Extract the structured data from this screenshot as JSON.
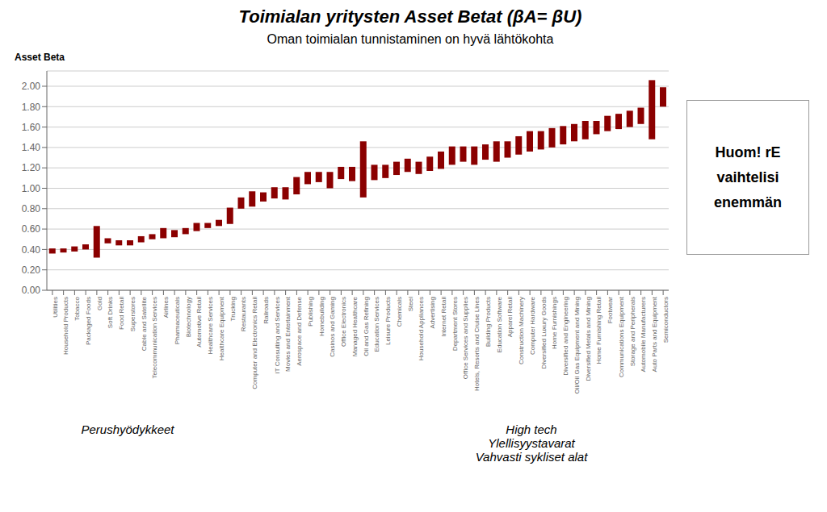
{
  "chart_data": {
    "type": "bar",
    "title": "Toimialan yritysten Asset Betat (βA= βU)",
    "subtitle": "Oman toimialan tunnistaminen on hyvä lähtökohta",
    "y_label": "Asset Beta",
    "categories": [
      "Utilities",
      "Household Products",
      "Tobacco",
      "Packaged Foods",
      "Gold",
      "Soft Drinks",
      "Food Retail",
      "Superstores",
      "Cable and Satellite",
      "Telecommunication Services",
      "Airlines",
      "Pharmaceuticals",
      "Biotechnology",
      "Automotive Retail",
      "Healthcare Services",
      "Healthcare Equipment",
      "Trucking",
      "Restaurants",
      "Computer and Electronics Retail",
      "Railroads",
      "IT Consulting and Services",
      "Movies and Entertainment",
      "Aerospace and Defense",
      "Publishing",
      "Homebuilding",
      "Casinos and Gaming",
      "Office Electronics",
      "Managed Healthcare",
      "Oil and Gas Refining",
      "Education Services",
      "Leisure Products",
      "Chemicals",
      "Steel",
      "Household Appliances",
      "Advertising",
      "Internet Retail",
      "Department Stores",
      "Office Services and Supplies",
      "Hotels, Resorts and Cruise Lines",
      "Building Products",
      "Education Software",
      "Apparel Retail",
      "Construction Machinery",
      "Computer Hardware",
      "Diversified Luxury Goods",
      "Home Furnishings",
      "Diversified and Engineering",
      "Oil/Oil Gas Equipment and Mining",
      "Diversified Metals and Mining",
      "Home Furnishing Retail",
      "Footwear",
      "Communications Equipment",
      "Storage and Peripherals",
      "Automobile Manufacturers",
      "Auto Parts and Equipment",
      "Semiconductors"
    ],
    "values": [
      [
        0.36,
        0.41
      ],
      [
        0.37,
        0.41
      ],
      [
        0.38,
        0.43
      ],
      [
        0.4,
        0.45
      ],
      [
        0.32,
        0.63
      ],
      [
        0.46,
        0.51
      ],
      [
        0.44,
        0.49
      ],
      [
        0.44,
        0.49
      ],
      [
        0.47,
        0.53
      ],
      [
        0.5,
        0.55
      ],
      [
        0.51,
        0.61
      ],
      [
        0.52,
        0.59
      ],
      [
        0.55,
        0.61
      ],
      [
        0.58,
        0.66
      ],
      [
        0.61,
        0.66
      ],
      [
        0.63,
        0.69
      ],
      [
        0.65,
        0.81
      ],
      [
        0.8,
        0.91
      ],
      [
        0.82,
        0.97
      ],
      [
        0.87,
        0.96
      ],
      [
        0.9,
        1.01
      ],
      [
        0.89,
        1.01
      ],
      [
        0.94,
        1.11
      ],
      [
        1.04,
        1.16
      ],
      [
        1.06,
        1.16
      ],
      [
        1.0,
        1.16
      ],
      [
        1.09,
        1.21
      ],
      [
        1.07,
        1.21
      ],
      [
        0.91,
        1.46
      ],
      [
        1.08,
        1.23
      ],
      [
        1.1,
        1.23
      ],
      [
        1.13,
        1.26
      ],
      [
        1.16,
        1.29
      ],
      [
        1.14,
        1.26
      ],
      [
        1.17,
        1.31
      ],
      [
        1.19,
        1.36
      ],
      [
        1.23,
        1.41
      ],
      [
        1.26,
        1.41
      ],
      [
        1.23,
        1.41
      ],
      [
        1.28,
        1.43
      ],
      [
        1.26,
        1.46
      ],
      [
        1.3,
        1.46
      ],
      [
        1.33,
        1.51
      ],
      [
        1.36,
        1.56
      ],
      [
        1.38,
        1.56
      ],
      [
        1.4,
        1.59
      ],
      [
        1.43,
        1.61
      ],
      [
        1.46,
        1.63
      ],
      [
        1.48,
        1.66
      ],
      [
        1.53,
        1.66
      ],
      [
        1.56,
        1.71
      ],
      [
        1.58,
        1.73
      ],
      [
        1.6,
        1.76
      ],
      [
        1.63,
        1.79
      ],
      [
        1.48,
        2.06
      ],
      [
        1.8,
        1.99
      ]
    ],
    "color": "#8B0000",
    "ylim": [
      0.0,
      2.15
    ],
    "yticks": [
      {
        "value": 0.0,
        "label": "0.00"
      },
      {
        "value": 0.2,
        "label": "0.20"
      },
      {
        "value": 0.4,
        "label": "0.40"
      },
      {
        "value": 0.6,
        "label": "0.60"
      },
      {
        "value": 0.8,
        "label": "0.80"
      },
      {
        "value": 1.0,
        "label": "1.00"
      },
      {
        "value": 1.2,
        "label": "1.20"
      },
      {
        "value": 1.4,
        "label": "1.40"
      },
      {
        "value": 1.6,
        "label": "1.60"
      },
      {
        "value": 1.8,
        "label": "1.80"
      },
      {
        "value": 2.0,
        "label": "2.00"
      }
    ],
    "grid": true,
    "annotations": [
      "Huom! rE",
      "vaihtelisi",
      "enemmän",
      "Perushyödykkeet",
      "High tech",
      "Ylellisyystavarat",
      "Vahvasti sykliset alat"
    ]
  }
}
